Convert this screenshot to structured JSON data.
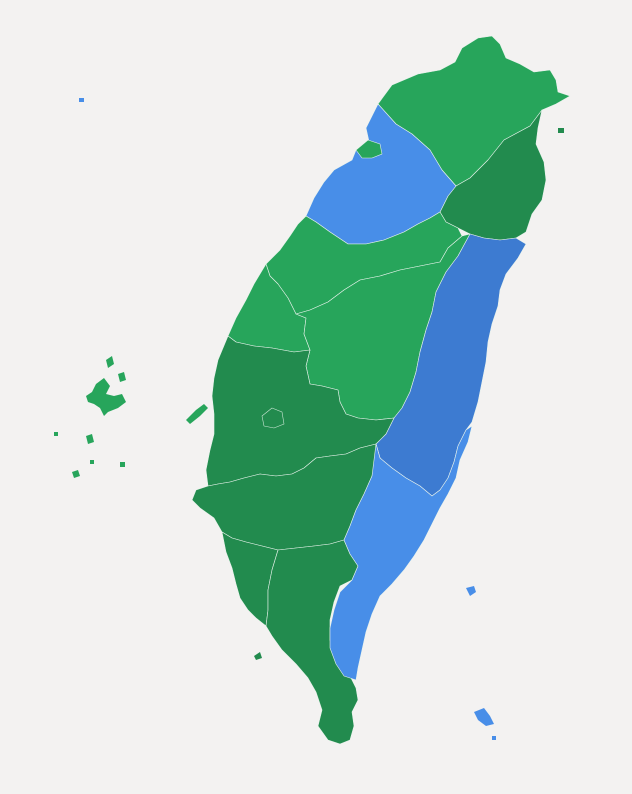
{
  "map": {
    "colors": {
      "background": "#f3f2f1",
      "green_light": "#27a55b",
      "green_dark": "#228b4e",
      "blue_light": "#488ee8",
      "blue_dark": "#3d7bd1"
    },
    "regions": [
      {
        "id": "taipei-keelung",
        "fill_key": "green_light"
      },
      {
        "id": "yilan",
        "fill_key": "green_dark"
      },
      {
        "id": "taoyuan-hsinchu",
        "fill_key": "blue_light"
      },
      {
        "id": "hsinchu-miaoli",
        "fill_key": "green_light"
      },
      {
        "id": "taichung",
        "fill_key": "green_light"
      },
      {
        "id": "changhua",
        "fill_key": "green_light"
      },
      {
        "id": "nantou",
        "fill_key": "green_light"
      },
      {
        "id": "hualien",
        "fill_key": "blue_dark"
      },
      {
        "id": "yunlin-chiayi",
        "fill_key": "green_dark"
      },
      {
        "id": "tainan",
        "fill_key": "green_dark"
      },
      {
        "id": "kaohsiung-west",
        "fill_key": "green_dark"
      },
      {
        "id": "kaohsiung-pingtung",
        "fill_key": "green_dark"
      },
      {
        "id": "taitung",
        "fill_key": "blue_light"
      },
      {
        "id": "penghu",
        "fill_key": "green_light"
      },
      {
        "id": "outlying-islands",
        "fill_key": "blue_light"
      }
    ]
  }
}
